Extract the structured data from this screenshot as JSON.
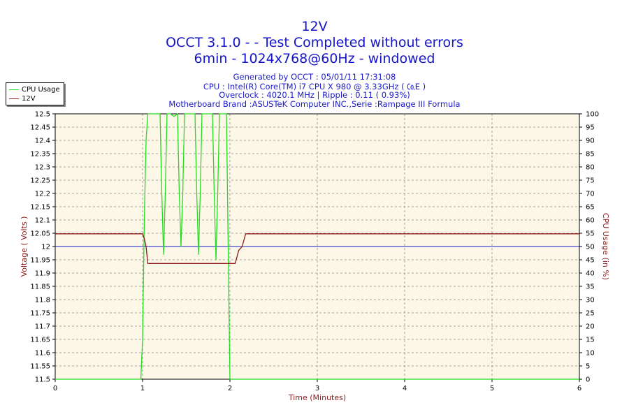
{
  "titles": {
    "line1": "12V",
    "line2": "OCCT 3.1.0 -  - Test Completed without errors",
    "line3": "6min - 1024x768@60Hz - windowed"
  },
  "info": {
    "generated": "Generated by OCCT : 05/01/11 17:31:08",
    "cpu": "CPU : Intel(R) Core(TM) i7 CPU X 980 @ 3.33GHz (  ㏇E   )",
    "overclock": "Overclock : 4020.1 MHz | Ripple : 0.11 ( 0.93%)",
    "motherboard": "Motherboard Brand :ASUSTeK Computer INC.,Serie :Rampage III Formula"
  },
  "colors": {
    "cpu_usage": "#22dd22",
    "voltage": "#8b1a1a",
    "nominal": "#1a1acc",
    "plot_bg": "#fdf7e8",
    "grid": "#8a8a8a",
    "axis_label": "#8b1a1a"
  },
  "chart_data": {
    "type": "line",
    "xlabel": "Time (Minutes)",
    "ylabel_left": "Voltage ( Volts )",
    "ylabel_right": "CPU Usage (in %)",
    "xlim": [
      0,
      6
    ],
    "ylim_left": [
      11.5,
      12.5
    ],
    "ylim_right": [
      0,
      100
    ],
    "x_ticks": [
      "0",
      "1",
      "2",
      "3",
      "4",
      "5",
      "6"
    ],
    "y_left_ticks": [
      "11.5",
      "11.55",
      "11.6",
      "11.65",
      "11.7",
      "11.75",
      "11.8",
      "11.85",
      "11.9",
      "11.95",
      "12",
      "12.05",
      "12.1",
      "12.15",
      "12.2",
      "12.25",
      "12.3",
      "12.35",
      "12.4",
      "12.45",
      "12.5"
    ],
    "y_right_ticks": [
      "0",
      "5",
      "10",
      "15",
      "20",
      "25",
      "30",
      "35",
      "40",
      "45",
      "50",
      "55",
      "60",
      "65",
      "70",
      "75",
      "80",
      "85",
      "90",
      "95",
      "100"
    ],
    "grid": true,
    "legend_position": "top-left outside",
    "reference_line": {
      "y": 12.0
    },
    "series": [
      {
        "name": "CPU Usage",
        "axis": "right",
        "x": [
          0.0,
          0.98,
          1.0,
          1.02,
          1.04,
          1.06,
          1.1,
          1.15,
          1.2,
          1.22,
          1.24,
          1.26,
          1.28,
          1.32,
          1.36,
          1.4,
          1.42,
          1.44,
          1.46,
          1.48,
          1.52,
          1.56,
          1.6,
          1.62,
          1.64,
          1.66,
          1.68,
          1.72,
          1.76,
          1.8,
          1.82,
          1.84,
          1.86,
          1.88,
          1.92,
          1.96,
          1.98,
          2.0,
          2.02,
          2.04,
          2.1,
          6.0
        ],
        "y": [
          0,
          0,
          15,
          60,
          90,
          100,
          100,
          100,
          100,
          70,
          47,
          70,
          100,
          100,
          99,
          100,
          70,
          50,
          70,
          100,
          100,
          100,
          100,
          70,
          47,
          70,
          100,
          100,
          100,
          100,
          70,
          45,
          70,
          100,
          100,
          100,
          50,
          0,
          0,
          0,
          0,
          0
        ]
      },
      {
        "name": "12V",
        "axis": "left",
        "x": [
          0.0,
          1.0,
          1.02,
          1.04,
          1.06,
          1.5,
          2.0,
          2.06,
          2.08,
          2.1,
          2.14,
          2.18,
          6.0
        ],
        "y": [
          12.048,
          12.048,
          12.03,
          12.0,
          11.936,
          11.936,
          11.936,
          11.936,
          11.96,
          11.985,
          12.0,
          12.048,
          12.048
        ]
      }
    ]
  }
}
